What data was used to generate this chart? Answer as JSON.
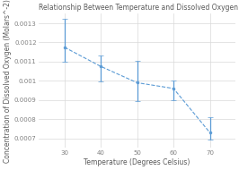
{
  "title": "Relationship Between Temperature and Dissolved Oxygen Concentration in Water",
  "xlabel": "Temperature (Degrees Celsius)",
  "ylabel": "Concentration of Dissolved Oxygen (Molars^-2)",
  "x": [
    30,
    40,
    50,
    60,
    70
  ],
  "y": [
    0.001175,
    0.001075,
    0.00099,
    0.00096,
    0.00073
  ],
  "yerr_upper": [
    0.00015,
    5.5e-05,
    0.000115,
    4e-05,
    8e-05
  ],
  "yerr_lower": [
    7.5e-05,
    8e-05,
    9.5e-05,
    6e-05,
    3.5e-05
  ],
  "line_color": "#5b9bd5",
  "errorbar_color": "#5b9bd5",
  "background_color": "#ffffff",
  "grid_color": "#d9d9d9",
  "ylim": [
    0.00065,
    0.00135
  ],
  "ytick_vals": [
    0.0007,
    0.0008,
    0.0009,
    0.001,
    0.0011,
    0.0012,
    0.0013
  ],
  "ytick_labels": [
    "0.0007",
    "0.0008",
    "0.0009",
    "0.001",
    "0.0011",
    "0.0012",
    "0.0013"
  ],
  "xticks": [
    30,
    40,
    50,
    60,
    70
  ],
  "title_fontsize": 5.5,
  "label_fontsize": 5.5,
  "tick_fontsize": 5.0,
  "title_color": "#595959",
  "label_color": "#595959",
  "tick_color": "#808080"
}
